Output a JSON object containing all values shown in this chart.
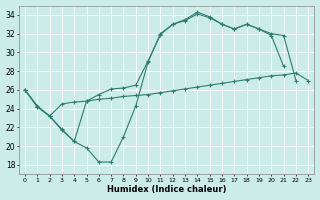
{
  "xlabel": "Humidex (Indice chaleur)",
  "bg_color": "#ccecea",
  "grid_color": "#ffffff",
  "line_color": "#2e7d6e",
  "xlim": [
    -0.5,
    23.5
  ],
  "ylim": [
    17,
    35
  ],
  "xticks": [
    0,
    1,
    2,
    3,
    4,
    5,
    6,
    7,
    8,
    9,
    10,
    11,
    12,
    13,
    14,
    15,
    16,
    17,
    18,
    19,
    20,
    21,
    22,
    23
  ],
  "yticks": [
    18,
    20,
    22,
    24,
    26,
    28,
    30,
    32,
    34
  ],
  "line1_x": [
    0,
    1,
    2,
    3,
    4,
    5,
    6,
    7,
    8,
    9,
    10,
    11,
    12,
    13,
    14,
    15,
    16,
    17,
    18,
    19,
    20,
    21
  ],
  "line1_y": [
    26.0,
    24.2,
    23.2,
    21.7,
    20.5,
    19.8,
    18.3,
    18.3,
    21.0,
    24.3,
    29.0,
    32.0,
    33.0,
    33.5,
    34.3,
    33.8,
    33.0,
    32.5,
    33.0,
    32.5,
    31.8,
    28.5
  ],
  "line2_x": [
    0,
    1,
    2,
    3,
    4,
    5,
    6,
    7,
    8,
    9,
    10,
    11,
    12,
    13,
    14,
    15,
    16,
    17,
    18,
    19,
    20,
    21,
    22,
    23
  ],
  "line2_y": [
    26.0,
    24.3,
    23.2,
    24.5,
    24.7,
    24.8,
    25.0,
    25.1,
    25.3,
    25.4,
    25.5,
    25.7,
    25.9,
    26.1,
    26.3,
    26.5,
    26.7,
    26.9,
    27.1,
    27.3,
    27.5,
    27.6,
    27.8,
    27.0
  ],
  "line3_x": [
    0,
    1,
    2,
    3,
    4,
    5,
    6,
    7,
    8,
    9,
    10,
    11,
    12,
    13,
    14,
    15,
    16,
    17,
    18,
    19,
    20,
    21,
    22
  ],
  "line3_y": [
    26.0,
    24.2,
    23.2,
    21.8,
    20.5,
    24.8,
    25.5,
    26.1,
    26.2,
    26.5,
    29.1,
    31.9,
    33.0,
    33.4,
    34.1,
    33.7,
    33.0,
    32.5,
    33.0,
    32.5,
    32.0,
    31.8,
    27.0
  ]
}
